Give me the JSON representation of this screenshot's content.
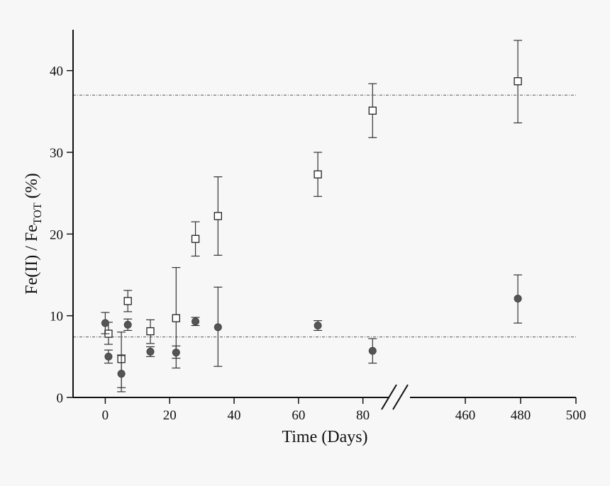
{
  "chart_data": {
    "type": "scatter",
    "title": "",
    "xlabel": "Time (Days)",
    "ylabel_main": "Fe(II) / Fe",
    "ylabel_sub": "TOT",
    "ylabel_unit": " (%)",
    "ylim": [
      0,
      45
    ],
    "y_ticks": [
      0,
      10,
      20,
      30,
      40
    ],
    "x_segments": [
      {
        "range": [
          -10,
          88
        ],
        "ticks": [
          0,
          20,
          40,
          60,
          80
        ]
      },
      {
        "range": [
          440,
          500
        ],
        "ticks": [
          460,
          480,
          500
        ]
      }
    ],
    "x_break": true,
    "grid": false,
    "reference_lines": [
      37,
      7.4
    ],
    "series": [
      {
        "marker": "open-square",
        "points": [
          {
            "x": 1,
            "y": 7.8,
            "lo": 6.5,
            "hi": 9.2
          },
          {
            "x": 5,
            "y": 4.7,
            "lo": 1.2,
            "hi": 8.0
          },
          {
            "x": 7,
            "y": 11.8,
            "lo": 10.5,
            "hi": 13.1
          },
          {
            "x": 14,
            "y": 8.1,
            "lo": 6.6,
            "hi": 9.5
          },
          {
            "x": 22,
            "y": 9.7,
            "lo": 3.6,
            "hi": 15.9
          },
          {
            "x": 28,
            "y": 19.4,
            "lo": 17.3,
            "hi": 21.5
          },
          {
            "x": 35,
            "y": 22.2,
            "lo": 17.4,
            "hi": 27.0
          },
          {
            "x": 66,
            "y": 27.3,
            "lo": 24.6,
            "hi": 30.0
          },
          {
            "x": 83,
            "y": 35.1,
            "lo": 31.8,
            "hi": 38.4
          },
          {
            "x": 479,
            "y": 38.7,
            "lo": 33.6,
            "hi": 43.7
          }
        ]
      },
      {
        "marker": "filled-circle",
        "points": [
          {
            "x": 0,
            "y": 9.1,
            "lo": 7.8,
            "hi": 10.4
          },
          {
            "x": 1,
            "y": 5.0,
            "lo": 4.2,
            "hi": 5.8
          },
          {
            "x": 5,
            "y": 2.9,
            "lo": 0.7,
            "hi": 5.2
          },
          {
            "x": 7,
            "y": 8.9,
            "lo": 8.2,
            "hi": 9.6
          },
          {
            "x": 14,
            "y": 5.6,
            "lo": 5.0,
            "hi": 6.2
          },
          {
            "x": 22,
            "y": 5.5,
            "lo": 4.8,
            "hi": 6.3
          },
          {
            "x": 28,
            "y": 9.3,
            "lo": 8.8,
            "hi": 9.8
          },
          {
            "x": 35,
            "y": 8.6,
            "lo": 3.8,
            "hi": 13.5
          },
          {
            "x": 66,
            "y": 8.8,
            "lo": 8.2,
            "hi": 9.4
          },
          {
            "x": 83,
            "y": 5.7,
            "lo": 4.2,
            "hi": 7.2
          },
          {
            "x": 479,
            "y": 12.1,
            "lo": 9.1,
            "hi": 15.0
          }
        ]
      }
    ]
  }
}
